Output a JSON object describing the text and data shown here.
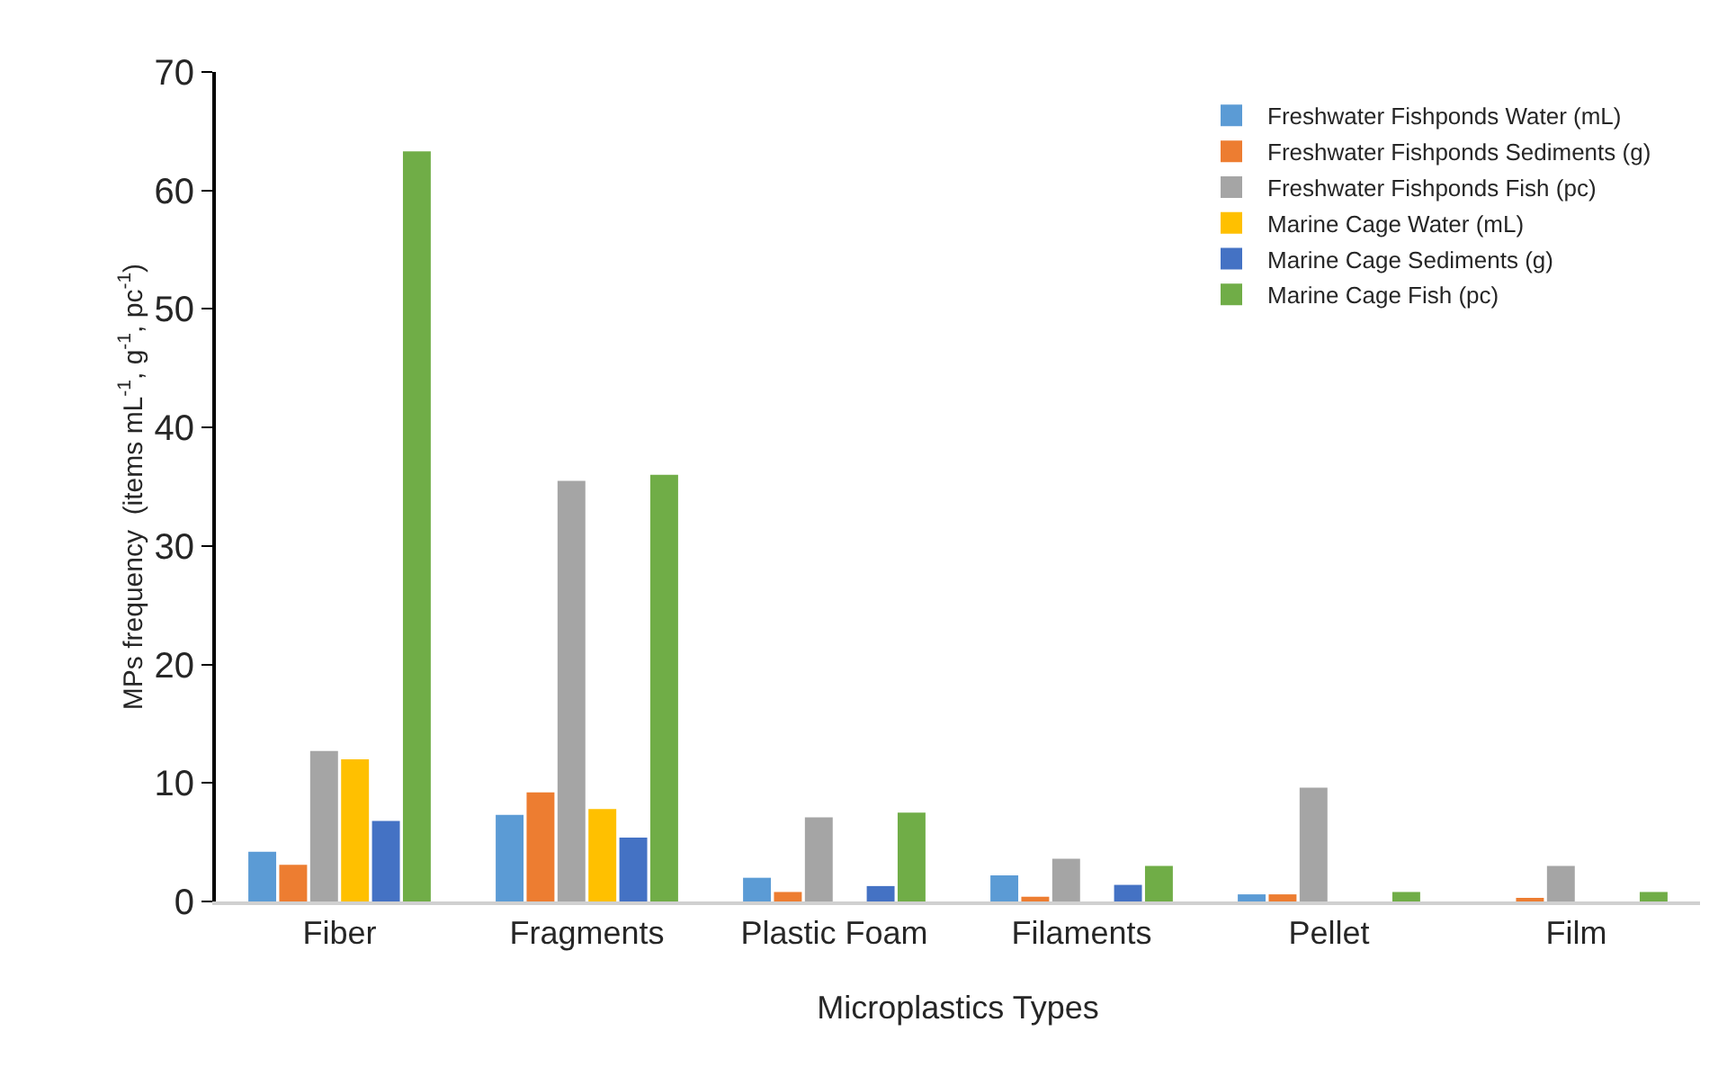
{
  "chart_data": {
    "type": "bar",
    "xlabel": "Microplastics Types",
    "ylabel": "MPs frequency  (items mL$^{-1}$, g$^{-1}$, pc$^{-1}$)",
    "categories": [
      "Fiber",
      "Fragments",
      "Plastic Foam",
      "Filaments",
      "Pellet",
      "Film"
    ],
    "series": [
      {
        "name": "Freshwater Fishponds Water (mL)",
        "color": "#5b9bd5",
        "values": [
          4.2,
          7.3,
          2.0,
          2.2,
          0.6,
          null
        ]
      },
      {
        "name": "Freshwater Fishponds Sediments (g)",
        "color": "#ed7d31",
        "values": [
          3.1,
          9.2,
          0.8,
          0.4,
          0.6,
          0.3
        ]
      },
      {
        "name": "Freshwater Fishponds Fish (pc)",
        "color": "#a5a5a5",
        "values": [
          12.7,
          35.5,
          7.1,
          3.6,
          9.6,
          3.0
        ]
      },
      {
        "name": "Marine Cage Water (mL)",
        "color": "#ffc000",
        "values": [
          12.0,
          7.8,
          null,
          null,
          null,
          null
        ]
      },
      {
        "name": "Marine Cage Sediments (g)",
        "color": "#4472c4",
        "values": [
          6.8,
          5.4,
          1.3,
          1.4,
          null,
          null
        ]
      },
      {
        "name": "Marine Cage Fish (pc)",
        "color": "#70ad47",
        "values": [
          63.3,
          36.0,
          7.5,
          3.0,
          0.8,
          0.8
        ]
      }
    ],
    "ylim": [
      0,
      70
    ],
    "yticks": [
      0,
      10,
      20,
      30,
      40,
      50,
      60,
      70
    ],
    "grid": false,
    "legend": "top right"
  }
}
